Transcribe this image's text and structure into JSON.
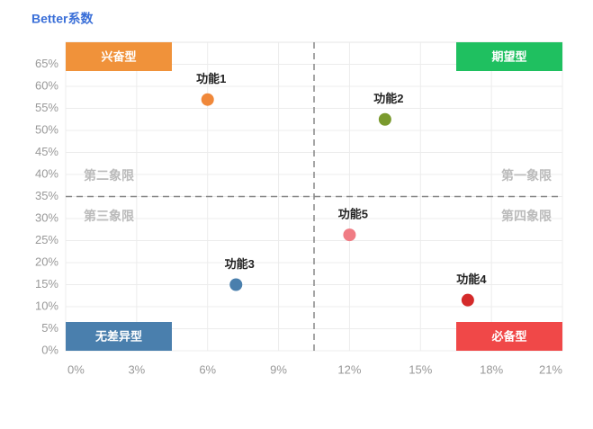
{
  "chart_data": {
    "type": "scatter",
    "title": "Better系数",
    "xlim": [
      0,
      21
    ],
    "xticks": [
      {
        "value": 0,
        "label": "0%"
      },
      {
        "value": 3,
        "label": "3%"
      },
      {
        "value": 6,
        "label": "6%"
      },
      {
        "value": 9,
        "label": "9%"
      },
      {
        "value": 12,
        "label": "12%"
      },
      {
        "value": 15,
        "label": "15%"
      },
      {
        "value": 18,
        "label": "18%"
      },
      {
        "value": 21,
        "label": "21%"
      }
    ],
    "ylim": [
      0,
      70
    ],
    "yticks": [
      {
        "value": 0,
        "label": "0%"
      },
      {
        "value": 5,
        "label": "5%"
      },
      {
        "value": 10,
        "label": "10%"
      },
      {
        "value": 15,
        "label": "15%"
      },
      {
        "value": 20,
        "label": "20%"
      },
      {
        "value": 25,
        "label": "25%"
      },
      {
        "value": 30,
        "label": "30%"
      },
      {
        "value": 35,
        "label": "35%"
      },
      {
        "value": 40,
        "label": "40%"
      },
      {
        "value": 45,
        "label": "45%"
      },
      {
        "value": 50,
        "label": "50%"
      },
      {
        "value": 55,
        "label": "55%"
      },
      {
        "value": 60,
        "label": "60%"
      },
      {
        "value": 65,
        "label": "65%"
      }
    ],
    "grid": true,
    "x_threshold": 10.5,
    "y_threshold": 35,
    "points": [
      {
        "name": "功能1",
        "x": 6,
        "y": 57,
        "color": "#f0883a"
      },
      {
        "name": "功能2",
        "x": 13.5,
        "y": 52.5,
        "color": "#7a9a2e"
      },
      {
        "name": "功能3",
        "x": 7.2,
        "y": 15,
        "color": "#4a7fad"
      },
      {
        "name": "功能4",
        "x": 17,
        "y": 11.5,
        "color": "#d42a2a"
      },
      {
        "name": "功能5",
        "x": 12,
        "y": 26.3,
        "color": "#f07c84"
      }
    ],
    "quadrants": [
      "第一象限",
      "第二象限",
      "第三象限",
      "第四象限"
    ],
    "corner_boxes": [
      {
        "label": "兴奋型",
        "color": "#f0923a"
      },
      {
        "label": "期望型",
        "color": "#1fc060"
      },
      {
        "label": "无差异型",
        "color": "#4a7fad"
      },
      {
        "label": "必备型",
        "color": "#f04848"
      }
    ]
  }
}
